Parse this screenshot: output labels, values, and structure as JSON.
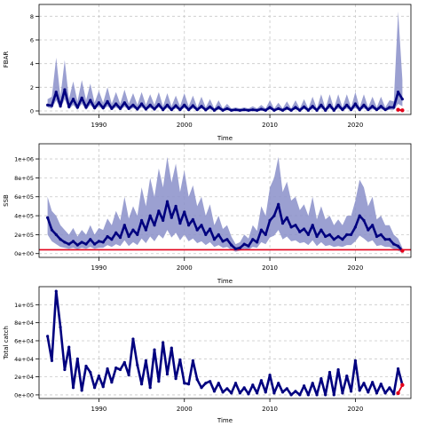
{
  "chart_data": [
    {
      "type": "line",
      "xlabel": "Time",
      "ylabel": "FBAR",
      "xlim": [
        1983,
        2026.5
      ],
      "ylim": [
        -0.3,
        9.0
      ],
      "x_ticks": [
        "1990",
        "2000",
        "2010",
        "2020"
      ],
      "x_tick_values": [
        1990,
        2000,
        2010,
        2020
      ],
      "y_ticks": [
        "0",
        "2",
        "4",
        "6",
        "8"
      ],
      "y_tick_values": [
        0,
        2,
        4,
        6,
        8
      ],
      "grid": true,
      "band_color": "#8a8fc9",
      "line_color": "#00007f",
      "highlight_color": "#e2001a",
      "series": [
        {
          "x": [
            1984.0,
            1984.5,
            1985.0,
            1985.5,
            1986.0,
            1986.5,
            1987.0,
            1987.5,
            1988.0,
            1988.5,
            1989.0,
            1989.5,
            1990.0,
            1990.5,
            1991.0,
            1991.5,
            1992.0,
            1992.5,
            1993.0,
            1993.5,
            1994.0,
            1994.5,
            1995.0,
            1995.5,
            1996.0,
            1996.5,
            1997.0,
            1997.5,
            1998.0,
            1998.5,
            1999.0,
            1999.5,
            2000.0,
            2000.5,
            2001.0,
            2001.5,
            2002.0,
            2002.5,
            2003.0,
            2003.5,
            2004.0,
            2004.5,
            2005.0,
            2005.5,
            2006.0,
            2006.5,
            2007.0,
            2007.5,
            2008.0,
            2008.5,
            2009.0,
            2009.5,
            2010.0,
            2010.5,
            2011.0,
            2011.5,
            2012.0,
            2012.5,
            2013.0,
            2013.5,
            2014.0,
            2014.5,
            2015.0,
            2015.5,
            2016.0,
            2016.5,
            2017.0,
            2017.5,
            2018.0,
            2018.5,
            2019.0,
            2019.5,
            2020.0,
            2020.5,
            2021.0,
            2021.5,
            2022.0,
            2022.5,
            2023.0,
            2023.5,
            2024.0,
            2024.5,
            2025.0,
            2025.5
          ],
          "y": [
            0.5,
            0.45,
            1.6,
            0.4,
            1.8,
            0.35,
            1.0,
            0.3,
            1.1,
            0.3,
            0.9,
            0.25,
            0.7,
            0.25,
            0.8,
            0.2,
            0.6,
            0.2,
            0.7,
            0.2,
            0.5,
            0.15,
            0.6,
            0.15,
            0.5,
            0.15,
            0.55,
            0.1,
            0.5,
            0.1,
            0.45,
            0.1,
            0.5,
            0.1,
            0.45,
            0.1,
            0.4,
            0.08,
            0.35,
            0.05,
            0.3,
            0.05,
            0.2,
            0.05,
            0.1,
            0.05,
            0.1,
            0.05,
            0.1,
            0.05,
            0.15,
            0.05,
            0.3,
            0.05,
            0.2,
            0.05,
            0.25,
            0.05,
            0.3,
            0.05,
            0.35,
            0.05,
            0.4,
            0.05,
            0.5,
            0.05,
            0.5,
            0.05,
            0.5,
            0.1,
            0.5,
            0.1,
            0.6,
            0.1,
            0.5,
            0.1,
            0.4,
            0.1,
            0.4,
            0.1,
            0.3,
            0.3,
            1.6,
            1.0
          ],
          "lo": [
            0.3,
            0.2,
            0.9,
            0.2,
            1.0,
            0.15,
            0.5,
            0.1,
            0.6,
            0.1,
            0.5,
            0.1,
            0.4,
            0.1,
            0.4,
            0.08,
            0.3,
            0.07,
            0.35,
            0.07,
            0.25,
            0.05,
            0.3,
            0.05,
            0.25,
            0.05,
            0.3,
            0.04,
            0.25,
            0.04,
            0.2,
            0.03,
            0.25,
            0.03,
            0.2,
            0.03,
            0.2,
            0.02,
            0.15,
            0.02,
            0.1,
            0.02,
            0.08,
            0.02,
            0.04,
            0.02,
            0.04,
            0.02,
            0.04,
            0.02,
            0.06,
            0.02,
            0.12,
            0.02,
            0.08,
            0.02,
            0.1,
            0.02,
            0.12,
            0.02,
            0.15,
            0.02,
            0.15,
            0.02,
            0.2,
            0.02,
            0.2,
            0.02,
            0.2,
            0.03,
            0.2,
            0.03,
            0.25,
            0.03,
            0.2,
            0.03,
            0.15,
            0.03,
            0.15,
            0.03,
            0.1,
            0.1,
            0.6,
            0.4
          ],
          "hi": [
            1.0,
            1.2,
            4.5,
            1.2,
            4.3,
            1.0,
            2.5,
            0.8,
            2.6,
            0.9,
            2.3,
            0.7,
            1.7,
            0.7,
            2.0,
            0.6,
            1.6,
            0.6,
            1.8,
            0.6,
            1.5,
            0.5,
            1.6,
            0.5,
            1.4,
            0.5,
            1.6,
            0.4,
            1.5,
            0.4,
            1.3,
            0.4,
            1.5,
            0.4,
            1.3,
            0.3,
            1.2,
            0.3,
            1.0,
            0.2,
            0.9,
            0.2,
            0.6,
            0.2,
            0.3,
            0.2,
            0.3,
            0.2,
            0.4,
            0.2,
            0.5,
            0.2,
            0.9,
            0.2,
            0.7,
            0.2,
            0.8,
            0.2,
            0.9,
            0.2,
            1.0,
            0.2,
            1.2,
            0.2,
            1.4,
            0.2,
            1.4,
            0.2,
            1.4,
            0.3,
            1.4,
            0.3,
            1.6,
            0.3,
            1.4,
            0.3,
            1.2,
            0.3,
            1.2,
            0.3,
            0.9,
            0.8,
            8.4,
            2.6
          ]
        },
        {
          "x": [
            2025.0,
            2025.5
          ],
          "y": [
            0.1,
            0.05
          ]
        }
      ]
    },
    {
      "type": "line",
      "xlabel": "Time",
      "ylabel": "SSB",
      "xlim": [
        1983,
        2026.5
      ],
      "ylim": [
        -40000,
        1160000
      ],
      "x_ticks": [
        "1990",
        "2000",
        "2010",
        "2020"
      ],
      "x_tick_values": [
        1990,
        2000,
        2010,
        2020
      ],
      "y_ticks": [
        "0e+00",
        "2e+05",
        "4e+05",
        "6e+05",
        "8e+05",
        "1e+06"
      ],
      "y_tick_values": [
        0,
        200000,
        400000,
        600000,
        800000,
        1000000
      ],
      "grid": true,
      "reference_line": 40000,
      "series": [
        {
          "x": [
            1984.0,
            1984.5,
            1985.0,
            1985.5,
            1986.0,
            1986.5,
            1987.0,
            1987.5,
            1988.0,
            1988.5,
            1989.0,
            1989.5,
            1990.0,
            1990.5,
            1991.0,
            1991.5,
            1992.0,
            1992.5,
            1993.0,
            1993.5,
            1994.0,
            1994.5,
            1995.0,
            1995.5,
            1996.0,
            1996.5,
            1997.0,
            1997.5,
            1998.0,
            1998.5,
            1999.0,
            1999.5,
            2000.0,
            2000.5,
            2001.0,
            2001.5,
            2002.0,
            2002.5,
            2003.0,
            2003.5,
            2004.0,
            2004.5,
            2005.0,
            2005.5,
            2006.0,
            2006.5,
            2007.0,
            2007.5,
            2008.0,
            2008.5,
            2009.0,
            2009.5,
            2010.0,
            2010.5,
            2011.0,
            2011.5,
            2012.0,
            2012.5,
            2013.0,
            2013.5,
            2014.0,
            2014.5,
            2015.0,
            2015.5,
            2016.0,
            2016.5,
            2017.0,
            2017.5,
            2018.0,
            2018.5,
            2019.0,
            2019.5,
            2020.0,
            2020.5,
            2021.0,
            2021.5,
            2022.0,
            2022.5,
            2023.0,
            2023.5,
            2024.0,
            2024.5,
            2025.0,
            2025.5
          ],
          "y": [
            380000,
            250000,
            200000,
            150000,
            120000,
            100000,
            130000,
            90000,
            120000,
            100000,
            150000,
            100000,
            130000,
            120000,
            180000,
            150000,
            220000,
            170000,
            300000,
            180000,
            250000,
            200000,
            350000,
            250000,
            400000,
            300000,
            450000,
            350000,
            550000,
            380000,
            500000,
            320000,
            440000,
            300000,
            360000,
            250000,
            300000,
            200000,
            260000,
            150000,
            200000,
            130000,
            150000,
            90000,
            50000,
            60000,
            100000,
            80000,
            150000,
            120000,
            250000,
            200000,
            350000,
            400000,
            520000,
            320000,
            380000,
            280000,
            300000,
            230000,
            260000,
            200000,
            300000,
            180000,
            250000,
            180000,
            200000,
            150000,
            180000,
            150000,
            200000,
            200000,
            280000,
            400000,
            350000,
            250000,
            300000,
            180000,
            200000,
            150000,
            150000,
            100000,
            80000,
            30000
          ],
          "lo": [
            200000,
            130000,
            100000,
            70000,
            60000,
            50000,
            60000,
            45000,
            60000,
            50000,
            70000,
            50000,
            60000,
            60000,
            90000,
            70000,
            100000,
            80000,
            140000,
            80000,
            120000,
            90000,
            160000,
            110000,
            180000,
            130000,
            200000,
            160000,
            250000,
            170000,
            220000,
            140000,
            200000,
            130000,
            160000,
            110000,
            130000,
            90000,
            120000,
            70000,
            90000,
            60000,
            70000,
            40000,
            20000,
            30000,
            50000,
            40000,
            70000,
            60000,
            120000,
            100000,
            170000,
            190000,
            250000,
            150000,
            180000,
            130000,
            140000,
            110000,
            120000,
            90000,
            140000,
            80000,
            120000,
            80000,
            90000,
            70000,
            80000,
            70000,
            90000,
            90000,
            130000,
            190000,
            160000,
            120000,
            140000,
            80000,
            90000,
            70000,
            70000,
            45000,
            30000,
            10000
          ],
          "hi": [
            600000,
            450000,
            400000,
            300000,
            250000,
            200000,
            270000,
            180000,
            250000,
            200000,
            300000,
            200000,
            270000,
            250000,
            370000,
            300000,
            450000,
            350000,
            600000,
            370000,
            500000,
            400000,
            700000,
            500000,
            800000,
            600000,
            900000,
            700000,
            1020000,
            750000,
            950000,
            650000,
            880000,
            600000,
            720000,
            500000,
            600000,
            400000,
            520000,
            300000,
            400000,
            260000,
            300000,
            180000,
            100000,
            120000,
            200000,
            160000,
            300000,
            240000,
            500000,
            400000,
            700000,
            800000,
            1020000,
            650000,
            760000,
            560000,
            600000,
            460000,
            520000,
            400000,
            600000,
            360000,
            500000,
            360000,
            400000,
            300000,
            360000,
            300000,
            400000,
            400000,
            560000,
            780000,
            700000,
            500000,
            600000,
            360000,
            400000,
            300000,
            300000,
            200000,
            160000,
            60000
          ]
        },
        {
          "x": [
            2025.5
          ],
          "y": [
            30000
          ]
        }
      ]
    },
    {
      "type": "line",
      "xlabel": "Time",
      "ylabel": "Total catch",
      "xlim": [
        1983,
        2026.5
      ],
      "ylim": [
        -4000,
        120000
      ],
      "x_ticks": [
        "1990",
        "2000",
        "2010",
        "2020"
      ],
      "x_tick_values": [
        1990,
        2000,
        2010,
        2020
      ],
      "y_ticks": [
        "0e+00",
        "2e+04",
        "4e+04",
        "6e+04",
        "8e+04",
        "1e+05"
      ],
      "y_tick_values": [
        0,
        20000,
        40000,
        60000,
        80000,
        100000
      ],
      "grid": true,
      "series": [
        {
          "x": [
            1984.0,
            1984.5,
            1985.0,
            1985.5,
            1986.0,
            1986.5,
            1987.0,
            1987.5,
            1988.0,
            1988.5,
            1989.0,
            1989.5,
            1990.0,
            1990.5,
            1991.0,
            1991.5,
            1992.0,
            1992.5,
            1993.0,
            1993.5,
            1994.0,
            1994.5,
            1995.0,
            1995.5,
            1996.0,
            1996.5,
            1997.0,
            1997.5,
            1998.0,
            1998.5,
            1999.0,
            1999.5,
            2000.0,
            2000.5,
            2001.0,
            2001.5,
            2002.0,
            2002.5,
            2003.0,
            2003.5,
            2004.0,
            2004.5,
            2005.0,
            2005.5,
            2006.0,
            2006.5,
            2007.0,
            2007.5,
            2008.0,
            2008.5,
            2009.0,
            2009.5,
            2010.0,
            2010.5,
            2011.0,
            2011.5,
            2012.0,
            2012.5,
            2013.0,
            2013.5,
            2014.0,
            2014.5,
            2015.0,
            2015.5,
            2016.0,
            2016.5,
            2017.0,
            2017.5,
            2018.0,
            2018.5,
            2019.0,
            2019.5,
            2020.0,
            2020.5,
            2021.0,
            2021.5,
            2022.0,
            2022.5,
            2023.0,
            2023.5,
            2024.0,
            2024.5,
            2025.0,
            2025.5
          ],
          "y": [
            65000,
            38000,
            115000,
            75000,
            28000,
            53000,
            8000,
            40000,
            5000,
            32000,
            25000,
            8000,
            21000,
            9000,
            29000,
            14000,
            30000,
            28000,
            36000,
            22000,
            62000,
            33000,
            12000,
            38000,
            8000,
            50000,
            15000,
            58000,
            23000,
            52000,
            18000,
            39000,
            13000,
            12000,
            38000,
            17000,
            8000,
            13000,
            15000,
            4000,
            13000,
            3000,
            7000,
            2000,
            13000,
            2000,
            8000,
            1000,
            11000,
            2000,
            16000,
            3000,
            22000,
            2000,
            13000,
            3000,
            7000,
            0,
            4000,
            0,
            10000,
            0,
            13000,
            0,
            18000,
            0,
            25000,
            0,
            28000,
            2000,
            21000,
            4000,
            38000,
            5000,
            13000,
            3000,
            14000,
            2000,
            12000,
            2000,
            8000,
            1000,
            29000,
            11000
          ]
        },
        {
          "x": [
            2025.0,
            2025.5
          ],
          "y": [
            2000,
            11000
          ]
        }
      ]
    }
  ]
}
